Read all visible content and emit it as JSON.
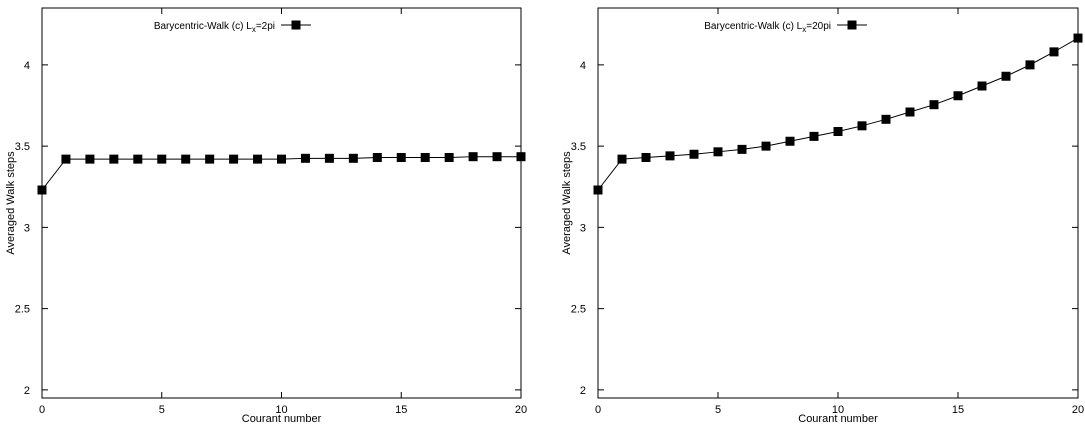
{
  "chart_data": [
    {
      "type": "line",
      "xlabel": "Courant number",
      "ylabel": "Averaged Walk steps",
      "xlim": [
        0,
        20
      ],
      "ylim": [
        1.95,
        4.35
      ],
      "xticks": [
        0,
        5,
        10,
        15,
        20
      ],
      "yticks": [
        2,
        2.5,
        3,
        3.5,
        4
      ],
      "ytick_labels": [
        "2",
        "2.5",
        "3",
        "3.5",
        "4"
      ],
      "legend_position": "top-left",
      "grid": false,
      "marker": "square",
      "color": "#000000",
      "series": [
        {
          "name": "Barycentric-Walk (c)  L",
          "name_sub": "x",
          "name_tail": "=2pi",
          "x": [
            0,
            1,
            2,
            3,
            4,
            5,
            6,
            7,
            8,
            9,
            10,
            11,
            12,
            13,
            14,
            15,
            16,
            17,
            18,
            19,
            20
          ],
          "values": [
            3.23,
            3.42,
            3.42,
            3.42,
            3.42,
            3.42,
            3.42,
            3.42,
            3.42,
            3.42,
            3.42,
            3.425,
            3.425,
            3.425,
            3.43,
            3.43,
            3.43,
            3.43,
            3.435,
            3.435,
            3.435
          ]
        }
      ]
    },
    {
      "type": "line",
      "xlabel": "Courant number",
      "ylabel": "Averaged Walk steps",
      "xlim": [
        0,
        20
      ],
      "ylim": [
        1.95,
        4.35
      ],
      "xticks": [
        0,
        5,
        10,
        15,
        20
      ],
      "yticks": [
        2,
        2.5,
        3,
        3.5,
        4
      ],
      "ytick_labels": [
        "2",
        "2.5",
        "3",
        "3.5",
        "4"
      ],
      "legend_position": "top-left",
      "grid": false,
      "marker": "square",
      "color": "#000000",
      "series": [
        {
          "name": "Barycentric-Walk (c)  L",
          "name_sub": "x",
          "name_tail": "=20pi",
          "x": [
            0,
            1,
            2,
            3,
            4,
            5,
            6,
            7,
            8,
            9,
            10,
            11,
            12,
            13,
            14,
            15,
            16,
            17,
            18,
            19,
            20
          ],
          "values": [
            3.23,
            3.42,
            3.43,
            3.44,
            3.45,
            3.465,
            3.48,
            3.5,
            3.53,
            3.56,
            3.59,
            3.625,
            3.665,
            3.71,
            3.755,
            3.81,
            3.87,
            3.93,
            4.0,
            4.08,
            4.165
          ]
        }
      ]
    }
  ]
}
